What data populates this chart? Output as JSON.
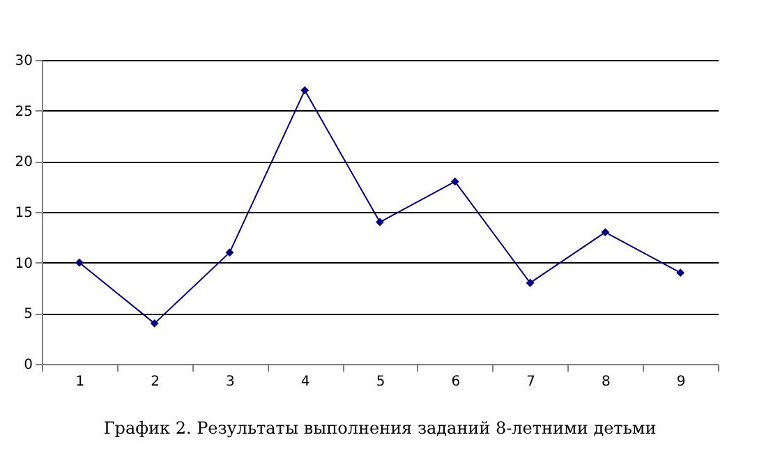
{
  "chart_data": {
    "type": "line",
    "title": "График 2. Результаты выполнения заданий 8-летними детьми",
    "categories": [
      "1",
      "2",
      "3",
      "4",
      "5",
      "6",
      "7",
      "8",
      "9"
    ],
    "series": [
      {
        "color": "#000080",
        "values": [
          10,
          4,
          11,
          27,
          14,
          18,
          8,
          13,
          9
        ]
      }
    ],
    "ylim": [
      0,
      30
    ],
    "yticks": [
      0,
      5,
      10,
      15,
      20,
      25,
      30
    ],
    "grid": "y",
    "marker": "diamond"
  }
}
